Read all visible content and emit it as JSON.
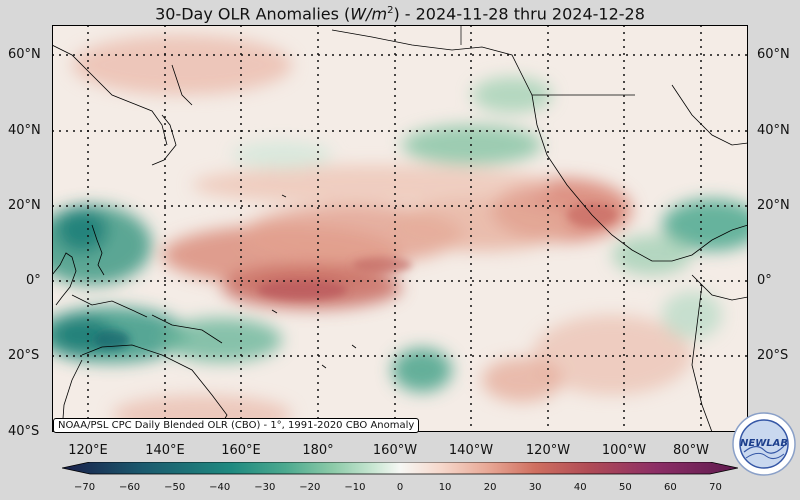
{
  "title": {
    "prefix": "30-Day OLR Anomalies (",
    "unit_base": "W/m",
    "unit_exp": "2",
    "suffix": ") - 2024-11-28 thru 2024-12-28"
  },
  "map": {
    "region": "Tropical and North Pacific",
    "lat_range": [
      -40,
      68
    ],
    "lon_range": [
      110,
      350
    ],
    "grid": true,
    "lat_labels": [
      "60°N",
      "40°N",
      "20°N",
      "0°",
      "20°S",
      "40°S"
    ],
    "lon_labels": [
      "120°E",
      "140°E",
      "160°E",
      "180°",
      "160°W",
      "140°W",
      "120°W",
      "100°W",
      "80°W"
    ],
    "anomaly_regions": [
      {
        "name": "Maritime Continent / West Pacific",
        "sign": "negative",
        "approx_value": -35
      },
      {
        "name": "South Pacific Convergence Zone",
        "sign": "negative",
        "approx_value": -25
      },
      {
        "name": "North Pacific 40°N",
        "sign": "negative",
        "approx_value": -20
      },
      {
        "name": "Caribbean",
        "sign": "negative",
        "approx_value": -25
      },
      {
        "name": "Central Equatorial Pacific",
        "sign": "positive",
        "approx_value": 35
      },
      {
        "name": "East Pacific off Mexico",
        "sign": "positive",
        "approx_value": 30
      }
    ]
  },
  "credit": "NOAA/PSL CPC Daily Blended OLR (CBO) - 1°, 1991-2020 CBO Anomaly",
  "colorbar": {
    "ticks": [
      "−70",
      "−60",
      "−50",
      "−40",
      "−30",
      "−20",
      "−10",
      "0",
      "10",
      "20",
      "30",
      "40",
      "50",
      "60",
      "70"
    ],
    "min": -75,
    "max": 75,
    "colors": [
      "#1a1f4a",
      "#1b5a6e",
      "#1f8a80",
      "#4ca98f",
      "#8ccaa8",
      "#c8e6d2",
      "#f6f7f4",
      "#f6d8cc",
      "#e8a896",
      "#cf6f60",
      "#b04b56",
      "#8c2e66",
      "#5e1a4e"
    ]
  },
  "logo": {
    "text": "NEWLAB",
    "ring_text": "NOAA PHYSICAL SCIENCES LABORATORY"
  }
}
